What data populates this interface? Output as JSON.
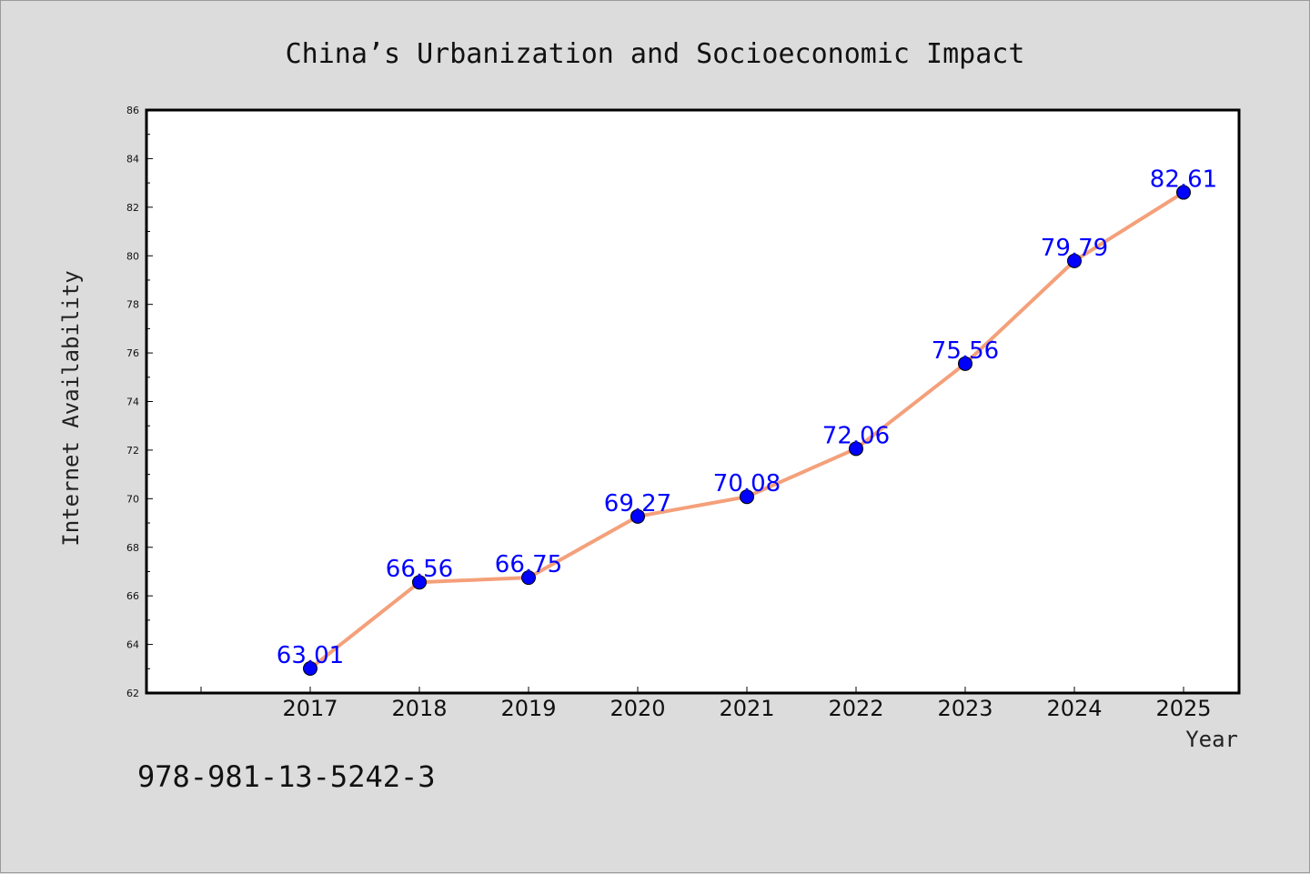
{
  "chart_data": {
    "type": "line",
    "title": "China’s Urbanization and Socioeconomic Impact",
    "xlabel": "Year",
    "ylabel": "Internet Availability",
    "categories": [
      "2017",
      "2018",
      "2019",
      "2020",
      "2021",
      "2022",
      "2023",
      "2024",
      "2025"
    ],
    "series": [
      {
        "values": [
          63.01,
          66.56,
          66.75,
          69.27,
          70.08,
          72.06,
          75.56,
          79.79,
          82.61
        ],
        "value_labels": [
          "63.01",
          "66.56",
          "66.75",
          "69.27",
          "70.08",
          "72.06",
          "75.56",
          "79.79",
          "82.61"
        ],
        "line_color": "#f4a07a",
        "marker_color": "#0000ff"
      }
    ],
    "ylim": [
      62,
      86
    ],
    "yticks": [
      62,
      64,
      66,
      68,
      70,
      72,
      74,
      76,
      78,
      80,
      82,
      84,
      86
    ],
    "grid": false,
    "legend": "none"
  },
  "footer": {
    "text": "978-981-13-5242-3"
  }
}
